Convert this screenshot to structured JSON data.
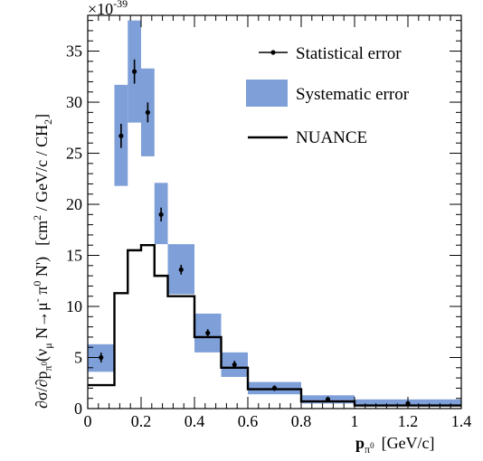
{
  "chart_data": {
    "type": "bar",
    "x": {
      "ticks": [
        "0",
        "0.2",
        "0.4",
        "0.6",
        "0.8",
        "1",
        "1.2",
        "1.4"
      ],
      "range": [
        0,
        1.4
      ],
      "minor_step": 0.04,
      "major_step": 0.2
    },
    "y": {
      "ticks": [
        "0",
        "5",
        "10",
        "15",
        "20",
        "25",
        "30",
        "35"
      ],
      "range": [
        0,
        38.5
      ],
      "minor_step": 1,
      "major_step": 5,
      "multiplier": "×10",
      "multiplier_exponent": "-39"
    },
    "xlabel": {
      "symbol": "p",
      "sub": "π",
      "subsup": "0",
      "units": "[GeV/c]"
    },
    "ylabel": {
      "lead": "∂σ/∂p",
      "lead_sub": "π",
      "lead_subsup": "0",
      "reaction": "(ν",
      "reaction_sub": "μ",
      "reaction_rest": " N→μ",
      "mu_sup": "-",
      "pi": " π",
      "pi_sup": "0",
      "reaction_end": " N')",
      "units_pre": "[cm",
      "units_sup": "2",
      "units_mid": " / GeV/c / CH",
      "units_sub": "2",
      "units_end": "]"
    },
    "legend": {
      "position": "top-right",
      "entries": [
        {
          "label": "Statistical error",
          "style": "marker"
        },
        {
          "label": "Systematic error",
          "style": "box"
        },
        {
          "label": "NUANCE",
          "style": "line"
        }
      ]
    },
    "colors": {
      "systematic": "#7f9fd9",
      "data": "#000000",
      "model": "#000000"
    },
    "bins": [
      {
        "x_low": 0.0,
        "x_high": 0.1,
        "x": 0.05,
        "value": 5.0,
        "stat_err": 0.3,
        "sys_low": 3.6,
        "sys_high": 6.3
      },
      {
        "x_low": 0.1,
        "x_high": 0.15,
        "x": 0.125,
        "value": 26.7,
        "stat_err": 1.0,
        "sys_low": 21.8,
        "sys_high": 31.7
      },
      {
        "x_low": 0.15,
        "x_high": 0.2,
        "x": 0.175,
        "value": 33.0,
        "stat_err": 1.0,
        "sys_low": 28.0,
        "sys_high": 38.0
      },
      {
        "x_low": 0.2,
        "x_high": 0.25,
        "x": 0.225,
        "value": 29.0,
        "stat_err": 0.8,
        "sys_low": 24.7,
        "sys_high": 33.3
      },
      {
        "x_low": 0.25,
        "x_high": 0.3,
        "x": 0.275,
        "value": 19.0,
        "stat_err": 0.5,
        "sys_low": 16.1,
        "sys_high": 22.1
      },
      {
        "x_low": 0.3,
        "x_high": 0.4,
        "x": 0.35,
        "value": 13.6,
        "stat_err": 0.3,
        "sys_low": 11.2,
        "sys_high": 16.1
      },
      {
        "x_low": 0.4,
        "x_high": 0.5,
        "x": 0.45,
        "value": 7.4,
        "stat_err": 0.2,
        "sys_low": 5.5,
        "sys_high": 9.3
      },
      {
        "x_low": 0.5,
        "x_high": 0.6,
        "x": 0.55,
        "value": 4.3,
        "stat_err": 0.2,
        "sys_low": 3.1,
        "sys_high": 5.5
      },
      {
        "x_low": 0.6,
        "x_high": 0.8,
        "x": 0.7,
        "value": 2.0,
        "stat_err": 0.1,
        "sys_low": 1.4,
        "sys_high": 2.6
      },
      {
        "x_low": 0.8,
        "x_high": 1.0,
        "x": 0.9,
        "value": 0.9,
        "stat_err": 0.1,
        "sys_low": 0.5,
        "sys_high": 1.3
      },
      {
        "x_low": 1.0,
        "x_high": 1.4,
        "x": 1.2,
        "value": 0.5,
        "stat_err": 0.05,
        "sys_low": 0.2,
        "sys_high": 0.9
      }
    ],
    "nuance": [
      {
        "x_low": 0.0,
        "x_high": 0.1,
        "value": 2.3
      },
      {
        "x_low": 0.1,
        "x_high": 0.15,
        "value": 11.3
      },
      {
        "x_low": 0.15,
        "x_high": 0.2,
        "value": 15.5
      },
      {
        "x_low": 0.2,
        "x_high": 0.25,
        "value": 16.0
      },
      {
        "x_low": 0.25,
        "x_high": 0.3,
        "value": 13.0
      },
      {
        "x_low": 0.3,
        "x_high": 0.4,
        "value": 11.0
      },
      {
        "x_low": 0.4,
        "x_high": 0.5,
        "value": 7.0
      },
      {
        "x_low": 0.5,
        "x_high": 0.6,
        "value": 4.0
      },
      {
        "x_low": 0.6,
        "x_high": 0.8,
        "value": 1.9
      },
      {
        "x_low": 0.8,
        "x_high": 1.0,
        "value": 0.7
      },
      {
        "x_low": 1.0,
        "x_high": 1.4,
        "value": 0.3
      }
    ]
  }
}
